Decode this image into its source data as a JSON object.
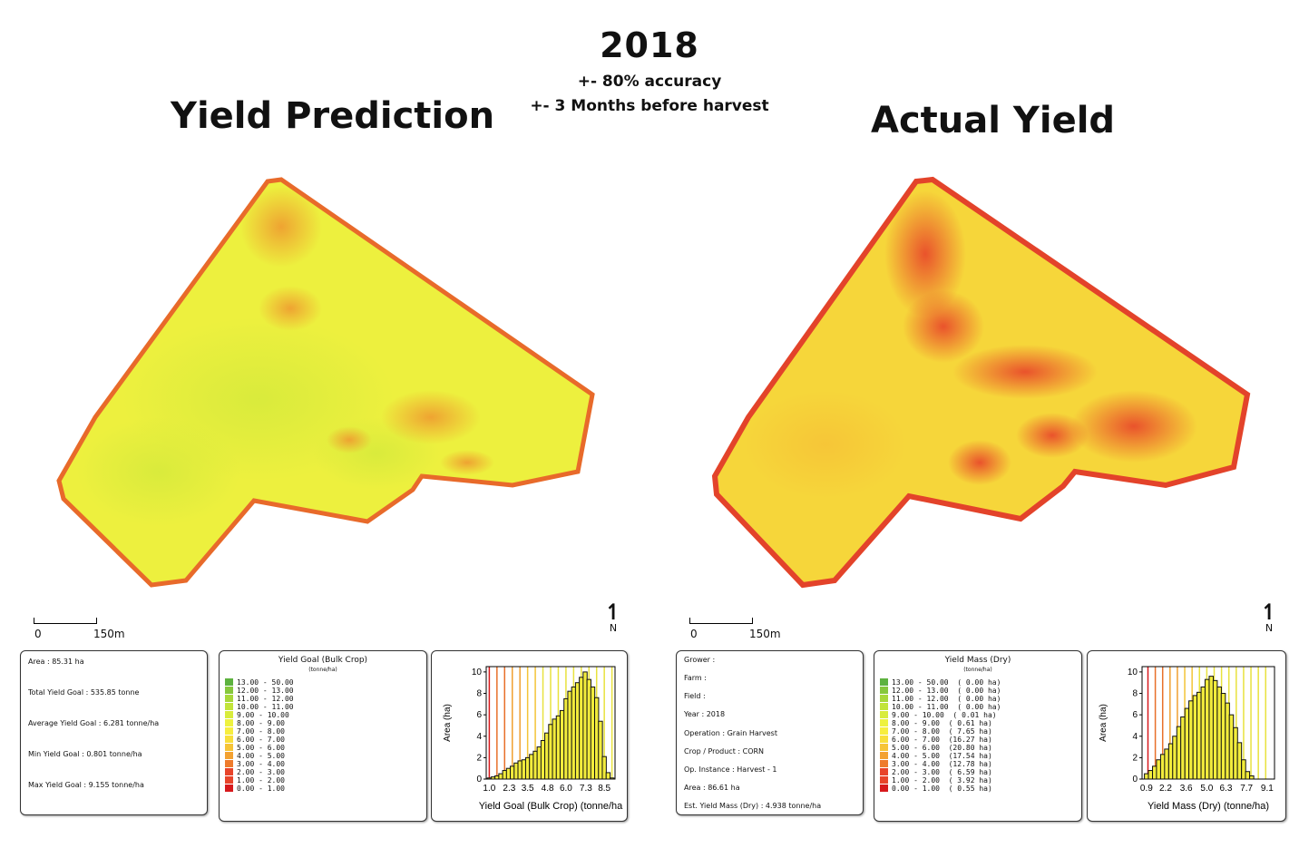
{
  "header": {
    "year": "2018",
    "accuracy": "+- 80% accuracy",
    "timing": "+- 3 Months before harvest",
    "left_title": "Yield Prediction",
    "right_title": "Actual Yield"
  },
  "colors": {
    "r0": "#d7191c",
    "r1": "#e8442a",
    "r2": "#ee7b2c",
    "r3": "#f3a232",
    "r4": "#f6c437",
    "r5": "#f8df3b",
    "r6": "#f7ee3f",
    "r7": "#eef23f",
    "r8": "#d8ec3c",
    "r9": "#c2e43a",
    "r10": "#a8d83a",
    "r11": "#86c83c",
    "r12": "#5db23f"
  },
  "left": {
    "scale": {
      "zero": "0",
      "dist": "150m"
    },
    "north": "N",
    "stats": [
      "Area : 85.31 ha",
      "Total Yield Goal : 535.85 tonne",
      "Average Yield Goal : 6.281 tonne/ha",
      "Min Yield Goal : 0.801 tonne/ha",
      "Max Yield Goal : 9.155 tonne/ha"
    ],
    "legend": {
      "title": "Yield Goal (Bulk Crop)",
      "unit": "(tonne/ha)",
      "rows": [
        "13.00 - 50.00",
        "12.00 - 13.00",
        "11.00 - 12.00",
        "10.00 - 11.00",
        "9.00 - 10.00",
        "8.00 - 9.00",
        "7.00 - 8.00",
        "6.00 - 7.00",
        "5.00 - 6.00",
        "4.00 - 5.00",
        "3.00 - 4.00",
        "2.00 - 3.00",
        "1.00 - 2.00",
        "0.00 - 1.00"
      ]
    }
  },
  "right": {
    "scale": {
      "zero": "0",
      "dist": "150m"
    },
    "north": "N",
    "stats": [
      "Grower :",
      "Farm :",
      "Field :",
      "Year : 2018",
      "Operation : Grain Harvest",
      "Crop / Product : CORN",
      "Op. Instance : Harvest - 1",
      "Area : 86.61 ha",
      "Est. Yield Mass (Dry) : 4.938 tonne/ha"
    ],
    "legend": {
      "title": "Yield Mass (Dry)",
      "unit": "(tonne/ha)",
      "rows": [
        "13.00 - 50.00  ( 0.00 ha)",
        "12.00 - 13.00  ( 0.00 ha)",
        "11.00 - 12.00  ( 0.00 ha)",
        "10.00 - 11.00  ( 0.00 ha)",
        "9.00 - 10.00  ( 0.01 ha)",
        "8.00 - 9.00  ( 0.61 ha)",
        "7.00 - 8.00  ( 7.65 ha)",
        "6.00 - 7.00  (16.27 ha)",
        "5.00 - 6.00  (20.80 ha)",
        "4.00 - 5.00  (17.54 ha)",
        "3.00 - 4.00  (12.78 ha)",
        "2.00 - 3.00  ( 6.59 ha)",
        "1.00 - 2.00  ( 3.92 ha)",
        "0.00 - 1.00  ( 0.55 ha)"
      ]
    }
  },
  "chart_data": [
    {
      "type": "bar",
      "xlabel": "Yield Goal (Bulk Crop) (tonne/ha",
      "ylabel": "Area (ha)",
      "x_ticks": [
        "1.0",
        "2.3",
        "3.5",
        "4.8",
        "6.0",
        "7.3",
        "8.5"
      ],
      "y_ticks": [
        "0",
        "2",
        "4",
        "6",
        "8",
        "10"
      ],
      "ylim": [
        0,
        10.5
      ],
      "xlim": [
        0.8,
        9.2
      ],
      "bin_width": 0.26,
      "bin_centers": [
        1.0,
        1.25,
        1.5,
        1.75,
        2.0,
        2.25,
        2.5,
        2.75,
        3.0,
        3.25,
        3.5,
        3.75,
        4.0,
        4.25,
        4.5,
        4.75,
        5.0,
        5.25,
        5.5,
        5.75,
        6.0,
        6.25,
        6.5,
        6.75,
        7.0,
        7.25,
        7.5,
        7.75,
        8.0,
        8.25,
        8.5,
        8.75,
        9.0
      ],
      "values": [
        0.1,
        0.2,
        0.3,
        0.5,
        0.8,
        1.0,
        1.2,
        1.5,
        1.7,
        1.8,
        2.0,
        2.3,
        2.6,
        3.0,
        3.6,
        4.3,
        5.1,
        5.6,
        5.9,
        6.4,
        7.5,
        8.2,
        8.6,
        9.0,
        9.5,
        10.0,
        9.3,
        8.6,
        7.6,
        5.4,
        2.1,
        0.6,
        0.1
      ],
      "gridlines_x": [
        1.0,
        1.5,
        2.0,
        2.5,
        3.0,
        3.5,
        4.0,
        4.5,
        5.0,
        5.5,
        6.0,
        6.5,
        7.0,
        7.5,
        8.0,
        8.5,
        9.0
      ]
    },
    {
      "type": "bar",
      "xlabel": "Yield Mass (Dry) (tonne/ha)",
      "ylabel": "Area (ha)",
      "x_ticks": [
        "0.9",
        "2.2",
        "3.6",
        "5.0",
        "6.3",
        "7.7",
        "9.1"
      ],
      "y_ticks": [
        "0",
        "2",
        "4",
        "6",
        "8",
        "10"
      ],
      "ylim": [
        0,
        10.5
      ],
      "xlim": [
        0.6,
        9.6
      ],
      "bin_width": 0.28,
      "bin_centers": [
        0.9,
        1.17,
        1.45,
        1.72,
        2.0,
        2.27,
        2.55,
        2.82,
        3.1,
        3.37,
        3.65,
        3.92,
        4.2,
        4.47,
        4.75,
        5.02,
        5.3,
        5.57,
        5.85,
        6.12,
        6.4,
        6.67,
        6.95,
        7.22,
        7.5,
        7.77,
        8.05
      ],
      "values": [
        0.5,
        0.8,
        1.2,
        1.8,
        2.3,
        2.8,
        3.3,
        4.0,
        4.9,
        5.8,
        6.6,
        7.3,
        7.8,
        8.1,
        8.6,
        9.3,
        9.6,
        9.2,
        8.6,
        8.0,
        7.1,
        6.0,
        4.8,
        3.4,
        1.8,
        0.7,
        0.3
      ],
      "gridlines_x": [
        1.0,
        1.5,
        2.0,
        2.5,
        3.0,
        3.5,
        4.0,
        4.5,
        5.0,
        5.5,
        6.0,
        6.5,
        7.0,
        7.5,
        8.0,
        8.5,
        9.0
      ]
    }
  ]
}
